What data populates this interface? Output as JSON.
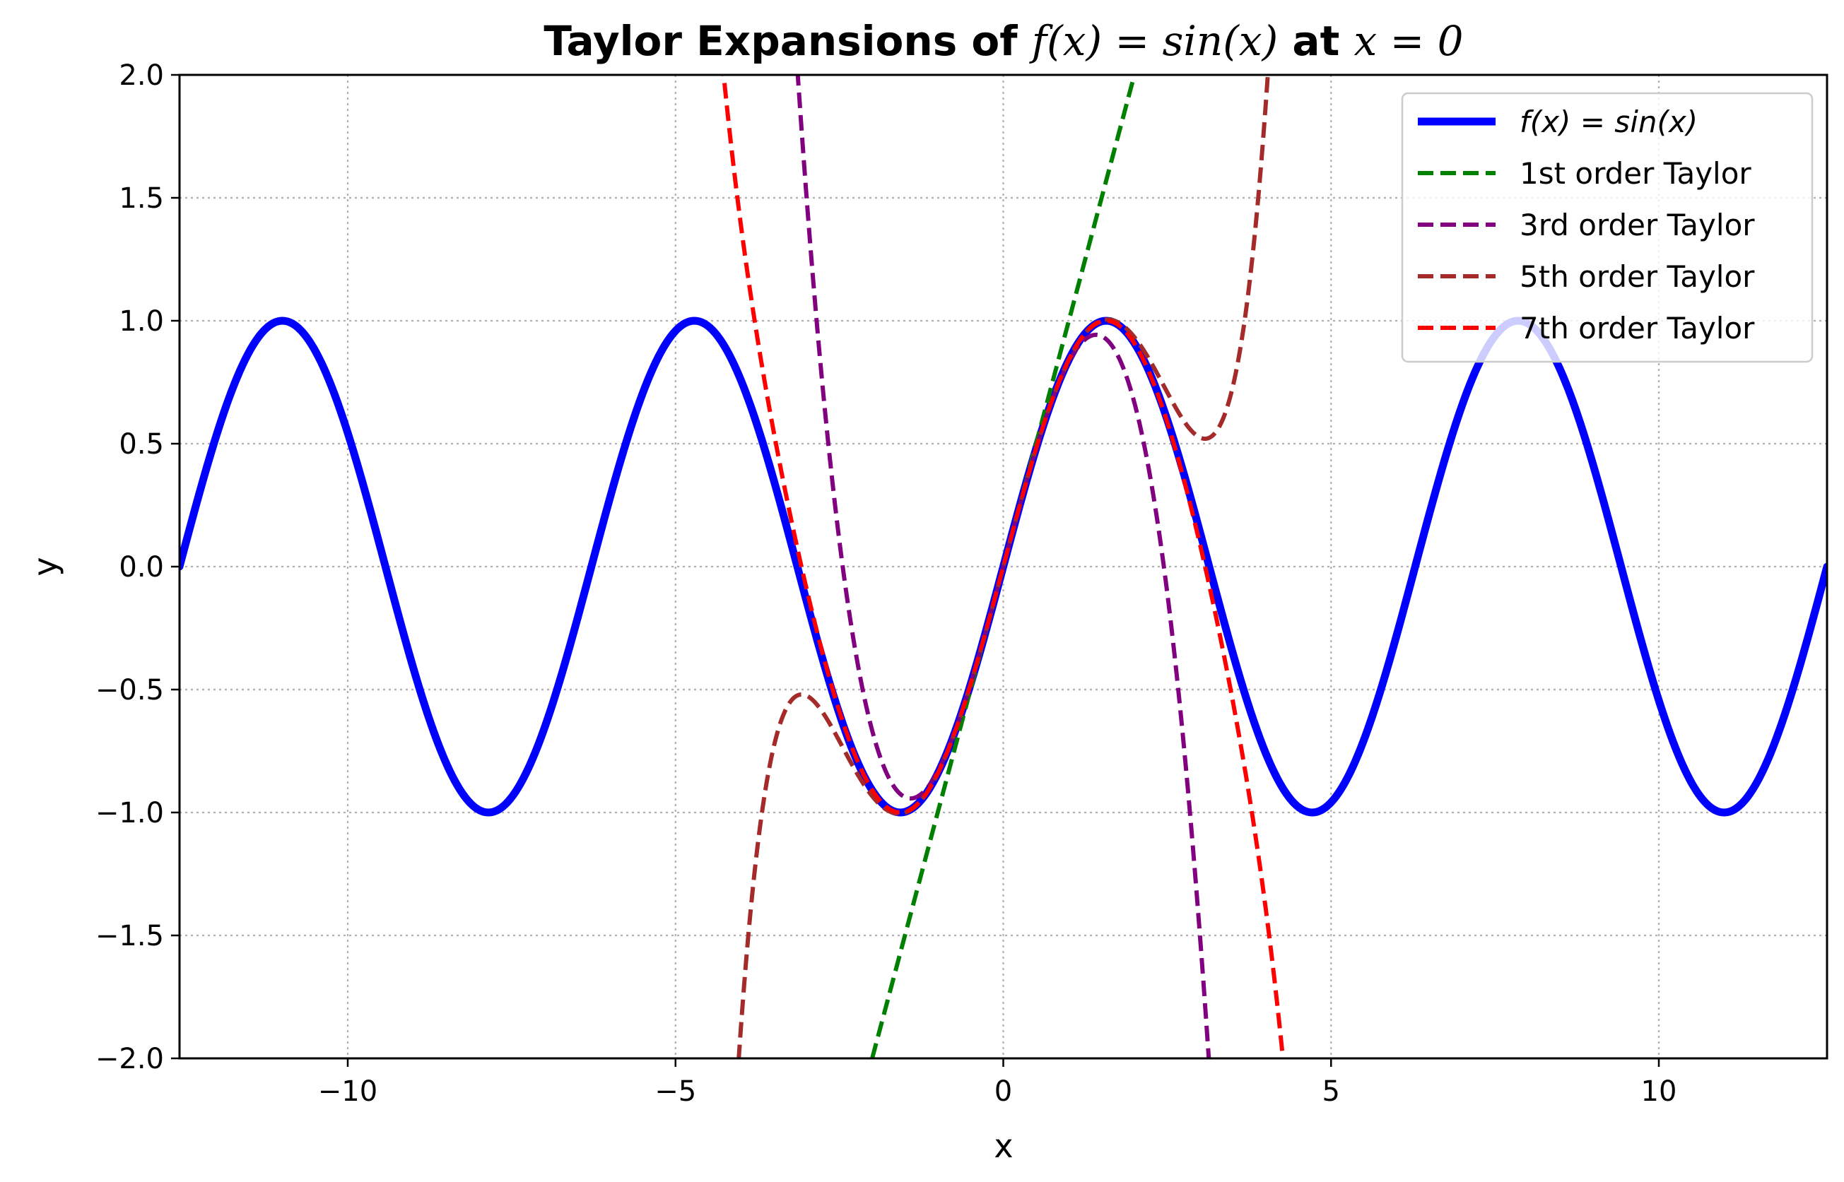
{
  "chart_data": {
    "type": "line",
    "title": {
      "prefix": "Taylor Expansions of ",
      "function": "f(x) = sin(x)",
      "middle": " at ",
      "point": "x = 0"
    },
    "xlabel": "x",
    "ylabel": "y",
    "xlim": [
      -12.566,
      12.566
    ],
    "ylim": [
      -2.0,
      2.0
    ],
    "grid": true,
    "legend_position": "upper right",
    "x_ticks": [
      {
        "value": -10,
        "label": "−10"
      },
      {
        "value": -5,
        "label": "−5"
      },
      {
        "value": 0,
        "label": "0"
      },
      {
        "value": 5,
        "label": "5"
      },
      {
        "value": 10,
        "label": "10"
      }
    ],
    "y_ticks": [
      {
        "value": 2.0,
        "label": "2.0"
      },
      {
        "value": 1.5,
        "label": "1.5"
      },
      {
        "value": 1.0,
        "label": "1.0"
      },
      {
        "value": 0.5,
        "label": "0.5"
      },
      {
        "value": 0.0,
        "label": "0.0"
      },
      {
        "value": -0.5,
        "label": "−0.5"
      },
      {
        "value": -1.0,
        "label": "−1.0"
      },
      {
        "value": -1.5,
        "label": "−1.5"
      },
      {
        "value": -2.0,
        "label": "−2.0"
      }
    ],
    "series": [
      {
        "name": "f(x) = sin(x)",
        "expression": "sin(x)",
        "style": "solid",
        "color": "#0000ff",
        "x": [
          -12.566,
          -12.0,
          -11.5,
          -11.0,
          -10.996,
          -10.5,
          -10.0,
          -9.5,
          -9.0,
          -8.5,
          -8.0,
          -7.854,
          -7.5,
          -7.0,
          -6.5,
          -6.0,
          -5.5,
          -5.0,
          -4.712,
          -4.5,
          -4.0,
          -3.5,
          -3.0,
          -2.5,
          -2.0,
          -1.571,
          -1.5,
          -1.0,
          -0.5,
          0.0,
          0.5,
          1.0,
          1.5,
          1.571,
          2.0,
          2.5,
          3.0,
          3.5,
          4.0,
          4.5,
          4.712,
          5.0,
          5.5,
          6.0,
          6.5,
          7.0,
          7.5,
          7.854,
          8.0,
          8.5,
          9.0,
          9.5,
          10.0,
          10.5,
          10.996,
          11.0,
          11.5,
          12.0,
          12.566
        ],
        "y": [
          0.0,
          0.537,
          0.875,
          1.0,
          1.0,
          0.88,
          0.544,
          0.075,
          -0.412,
          -0.798,
          -0.989,
          -1.0,
          -0.938,
          -0.657,
          -0.215,
          0.279,
          0.706,
          0.959,
          1.0,
          0.978,
          0.757,
          0.351,
          -0.141,
          -0.598,
          -0.909,
          -1.0,
          -0.997,
          -0.841,
          -0.479,
          0.0,
          0.479,
          0.841,
          0.997,
          1.0,
          0.909,
          0.598,
          0.141,
          -0.351,
          -0.757,
          -0.978,
          -1.0,
          -0.959,
          -0.706,
          -0.279,
          0.215,
          0.657,
          0.938,
          1.0,
          0.989,
          0.798,
          0.412,
          -0.075,
          -0.544,
          -0.88,
          -1.0,
          -1.0,
          -0.875,
          -0.537,
          0.0
        ]
      },
      {
        "name": "1st order Taylor",
        "expression": "x",
        "style": "dashed",
        "color": "#008000",
        "x": [
          -2.0,
          -1.0,
          0.0,
          1.0,
          2.0
        ],
        "y": [
          -2.0,
          -1.0,
          0.0,
          1.0,
          2.0
        ]
      },
      {
        "name": "3rd order Taylor",
        "expression": "x - x^3/6",
        "style": "dashed",
        "color": "#800080",
        "x": [
          -3.14,
          -3.0,
          -2.5,
          -2.0,
          -1.414,
          -1.0,
          -0.5,
          0.0,
          0.5,
          1.0,
          1.414,
          2.0,
          2.5,
          3.0,
          3.14
        ],
        "y": [
          2.0,
          1.5,
          0.104,
          -0.667,
          -0.943,
          -0.833,
          -0.479,
          0.0,
          0.479,
          0.833,
          0.943,
          0.667,
          -0.104,
          -1.5,
          -2.0
        ]
      },
      {
        "name": "5th order Taylor",
        "expression": "x - x^3/6 + x^5/120",
        "style": "dashed",
        "color": "#a52a2a",
        "x": [
          -4.06,
          -4.0,
          -3.5,
          -3.12,
          -3.0,
          -2.5,
          -2.0,
          -1.57,
          -1.0,
          -0.5,
          0.0,
          0.5,
          1.0,
          1.57,
          2.0,
          2.5,
          3.0,
          3.12,
          3.5,
          4.0,
          4.06
        ],
        "y": [
          -2.0,
          -1.867,
          -0.647,
          -0.527,
          -0.525,
          -0.71,
          -0.933,
          -1.005,
          -0.842,
          -0.479,
          0.0,
          0.479,
          0.842,
          1.005,
          0.933,
          0.71,
          0.525,
          0.527,
          0.647,
          1.867,
          2.0
        ]
      },
      {
        "name": "7th order Taylor",
        "expression": "x - x^3/6 + x^5/120 - x^7/5040",
        "style": "dashed",
        "color": "#ff0000",
        "x": [
          -4.32,
          -4.0,
          -3.5,
          -3.0,
          -2.5,
          -2.0,
          -1.57,
          -1.0,
          -0.5,
          0.0,
          0.5,
          1.0,
          1.57,
          2.0,
          2.5,
          3.0,
          3.5,
          4.0,
          4.32
        ],
        "y": [
          2.0,
          1.384,
          0.479,
          -0.091,
          -0.588,
          -0.908,
          -1.0,
          -0.841,
          -0.479,
          0.0,
          0.479,
          0.841,
          1.0,
          0.908,
          0.588,
          0.091,
          -0.479,
          -1.384,
          -2.0
        ]
      }
    ]
  }
}
